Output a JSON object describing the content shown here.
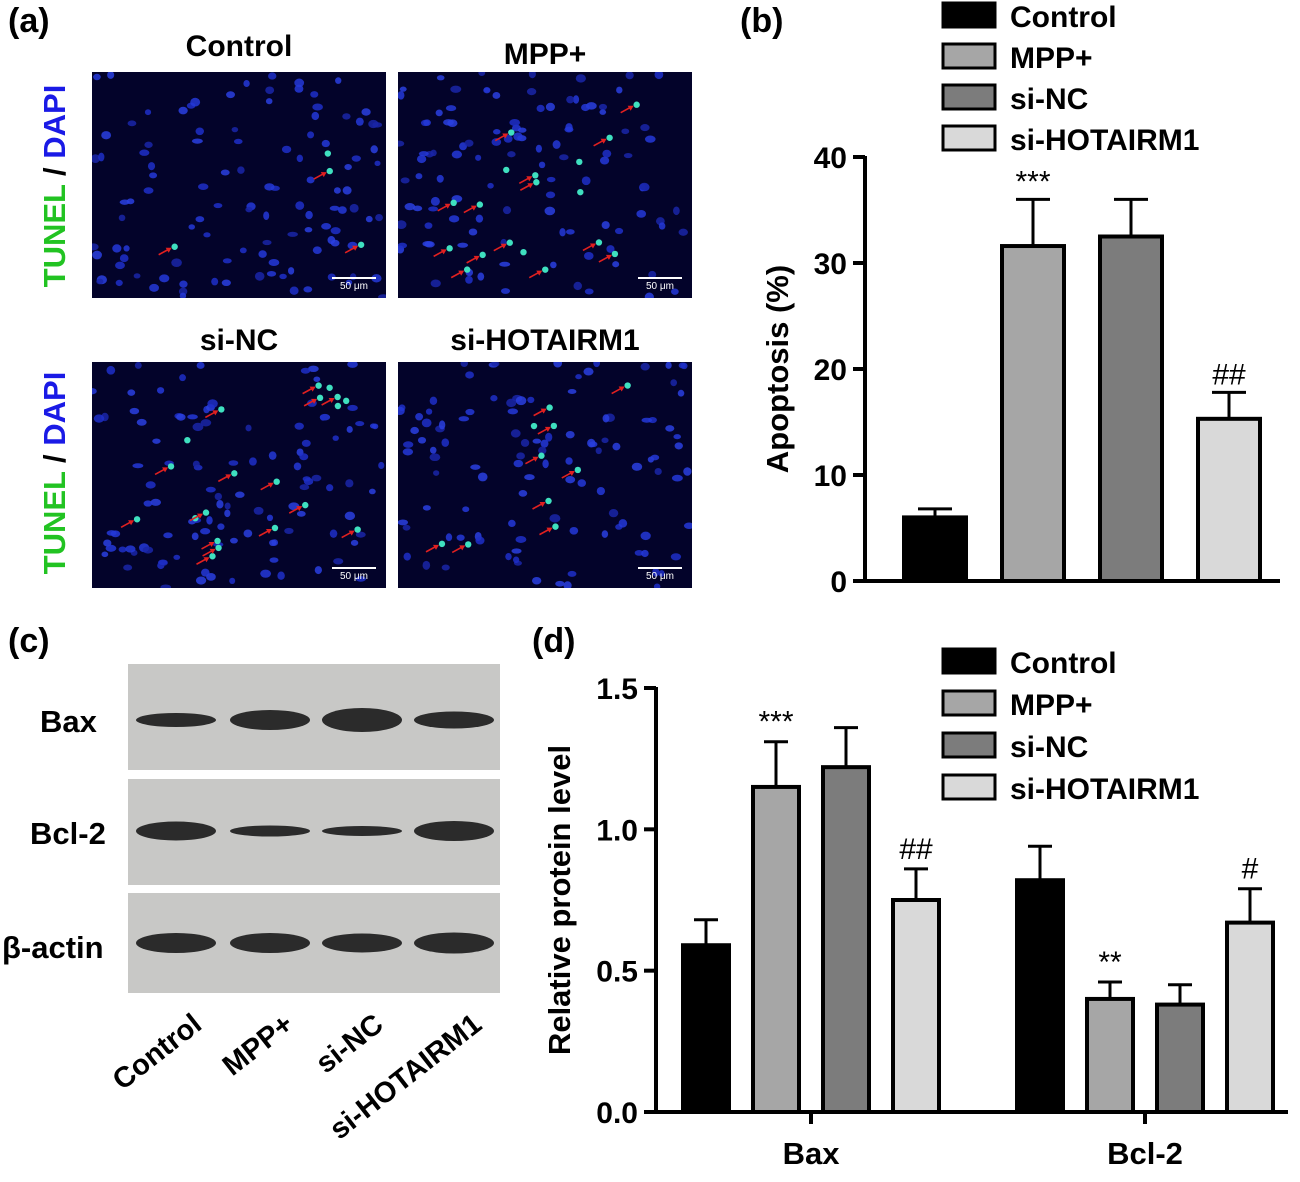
{
  "panels": {
    "a": {
      "label": "(a)",
      "ylabel_part1": "TUNEL",
      "ylabel_sep": " / ",
      "ylabel_part2": "DAPI",
      "images": [
        {
          "title": "Control",
          "scale": "50 μm"
        },
        {
          "title": "MPP+",
          "scale": "50 μm"
        },
        {
          "title": "si-NC",
          "scale": "50 μm"
        },
        {
          "title": "si-HOTAIRM1",
          "scale": "50 μm"
        }
      ]
    },
    "b": {
      "label": "(b)"
    },
    "c": {
      "label": "(c)",
      "proteins": [
        "Bax",
        "Bcl-2",
        "β-actin"
      ],
      "lanes": [
        "Control",
        "MPP+",
        "si-NC",
        "si-HOTAIRM1"
      ]
    },
    "d": {
      "label": "(d)"
    }
  },
  "colors": {
    "control": "#000000",
    "mpp": "#a6a6a6",
    "sinc": "#7c7c7c",
    "sihotairm1": "#d9d9d9",
    "tunel_green": "#22c322",
    "dapi_blue": "#1a1ae6",
    "arrow_red": "#e02020"
  },
  "chart_data": [
    {
      "type": "bar",
      "panel": "b",
      "categories": [
        "Control",
        "MPP+",
        "si-NC",
        "si-HOTAIRM1"
      ],
      "values": [
        6.0,
        31.6,
        32.5,
        15.3
      ],
      "errors": [
        0.8,
        4.4,
        3.5,
        2.5
      ],
      "annotations": [
        "",
        "***",
        "",
        "##"
      ],
      "ylabel": "Apoptosis (%)",
      "ylim": [
        0,
        40
      ],
      "yticks": [
        "0",
        "10",
        "20",
        "30",
        "40"
      ],
      "legend": [
        "Control",
        "MPP+",
        "si-NC",
        "si-HOTAIRM1"
      ],
      "legend_position": "top-right"
    },
    {
      "type": "bar",
      "panel": "d",
      "categories": [
        "Bax",
        "Bcl-2"
      ],
      "series": [
        {
          "name": "Control",
          "values": [
            0.59,
            0.82
          ],
          "errors": [
            0.09,
            0.12
          ],
          "annotations": [
            "",
            ""
          ]
        },
        {
          "name": "MPP+",
          "values": [
            1.15,
            0.4
          ],
          "errors": [
            0.16,
            0.06
          ],
          "annotations": [
            "***",
            "**"
          ]
        },
        {
          "name": "si-NC",
          "values": [
            1.22,
            0.38
          ],
          "errors": [
            0.14,
            0.07
          ],
          "annotations": [
            "",
            ""
          ]
        },
        {
          "name": "si-HOTAIRM1",
          "values": [
            0.75,
            0.67
          ],
          "errors": [
            0.11,
            0.12
          ],
          "annotations": [
            "##",
            "#"
          ]
        }
      ],
      "ylabel": "Relative protein level",
      "ylim": [
        0,
        1.5
      ],
      "yticks": [
        "0.0",
        "0.5",
        "1.0",
        "1.5"
      ],
      "legend_position": "top-right"
    }
  ]
}
